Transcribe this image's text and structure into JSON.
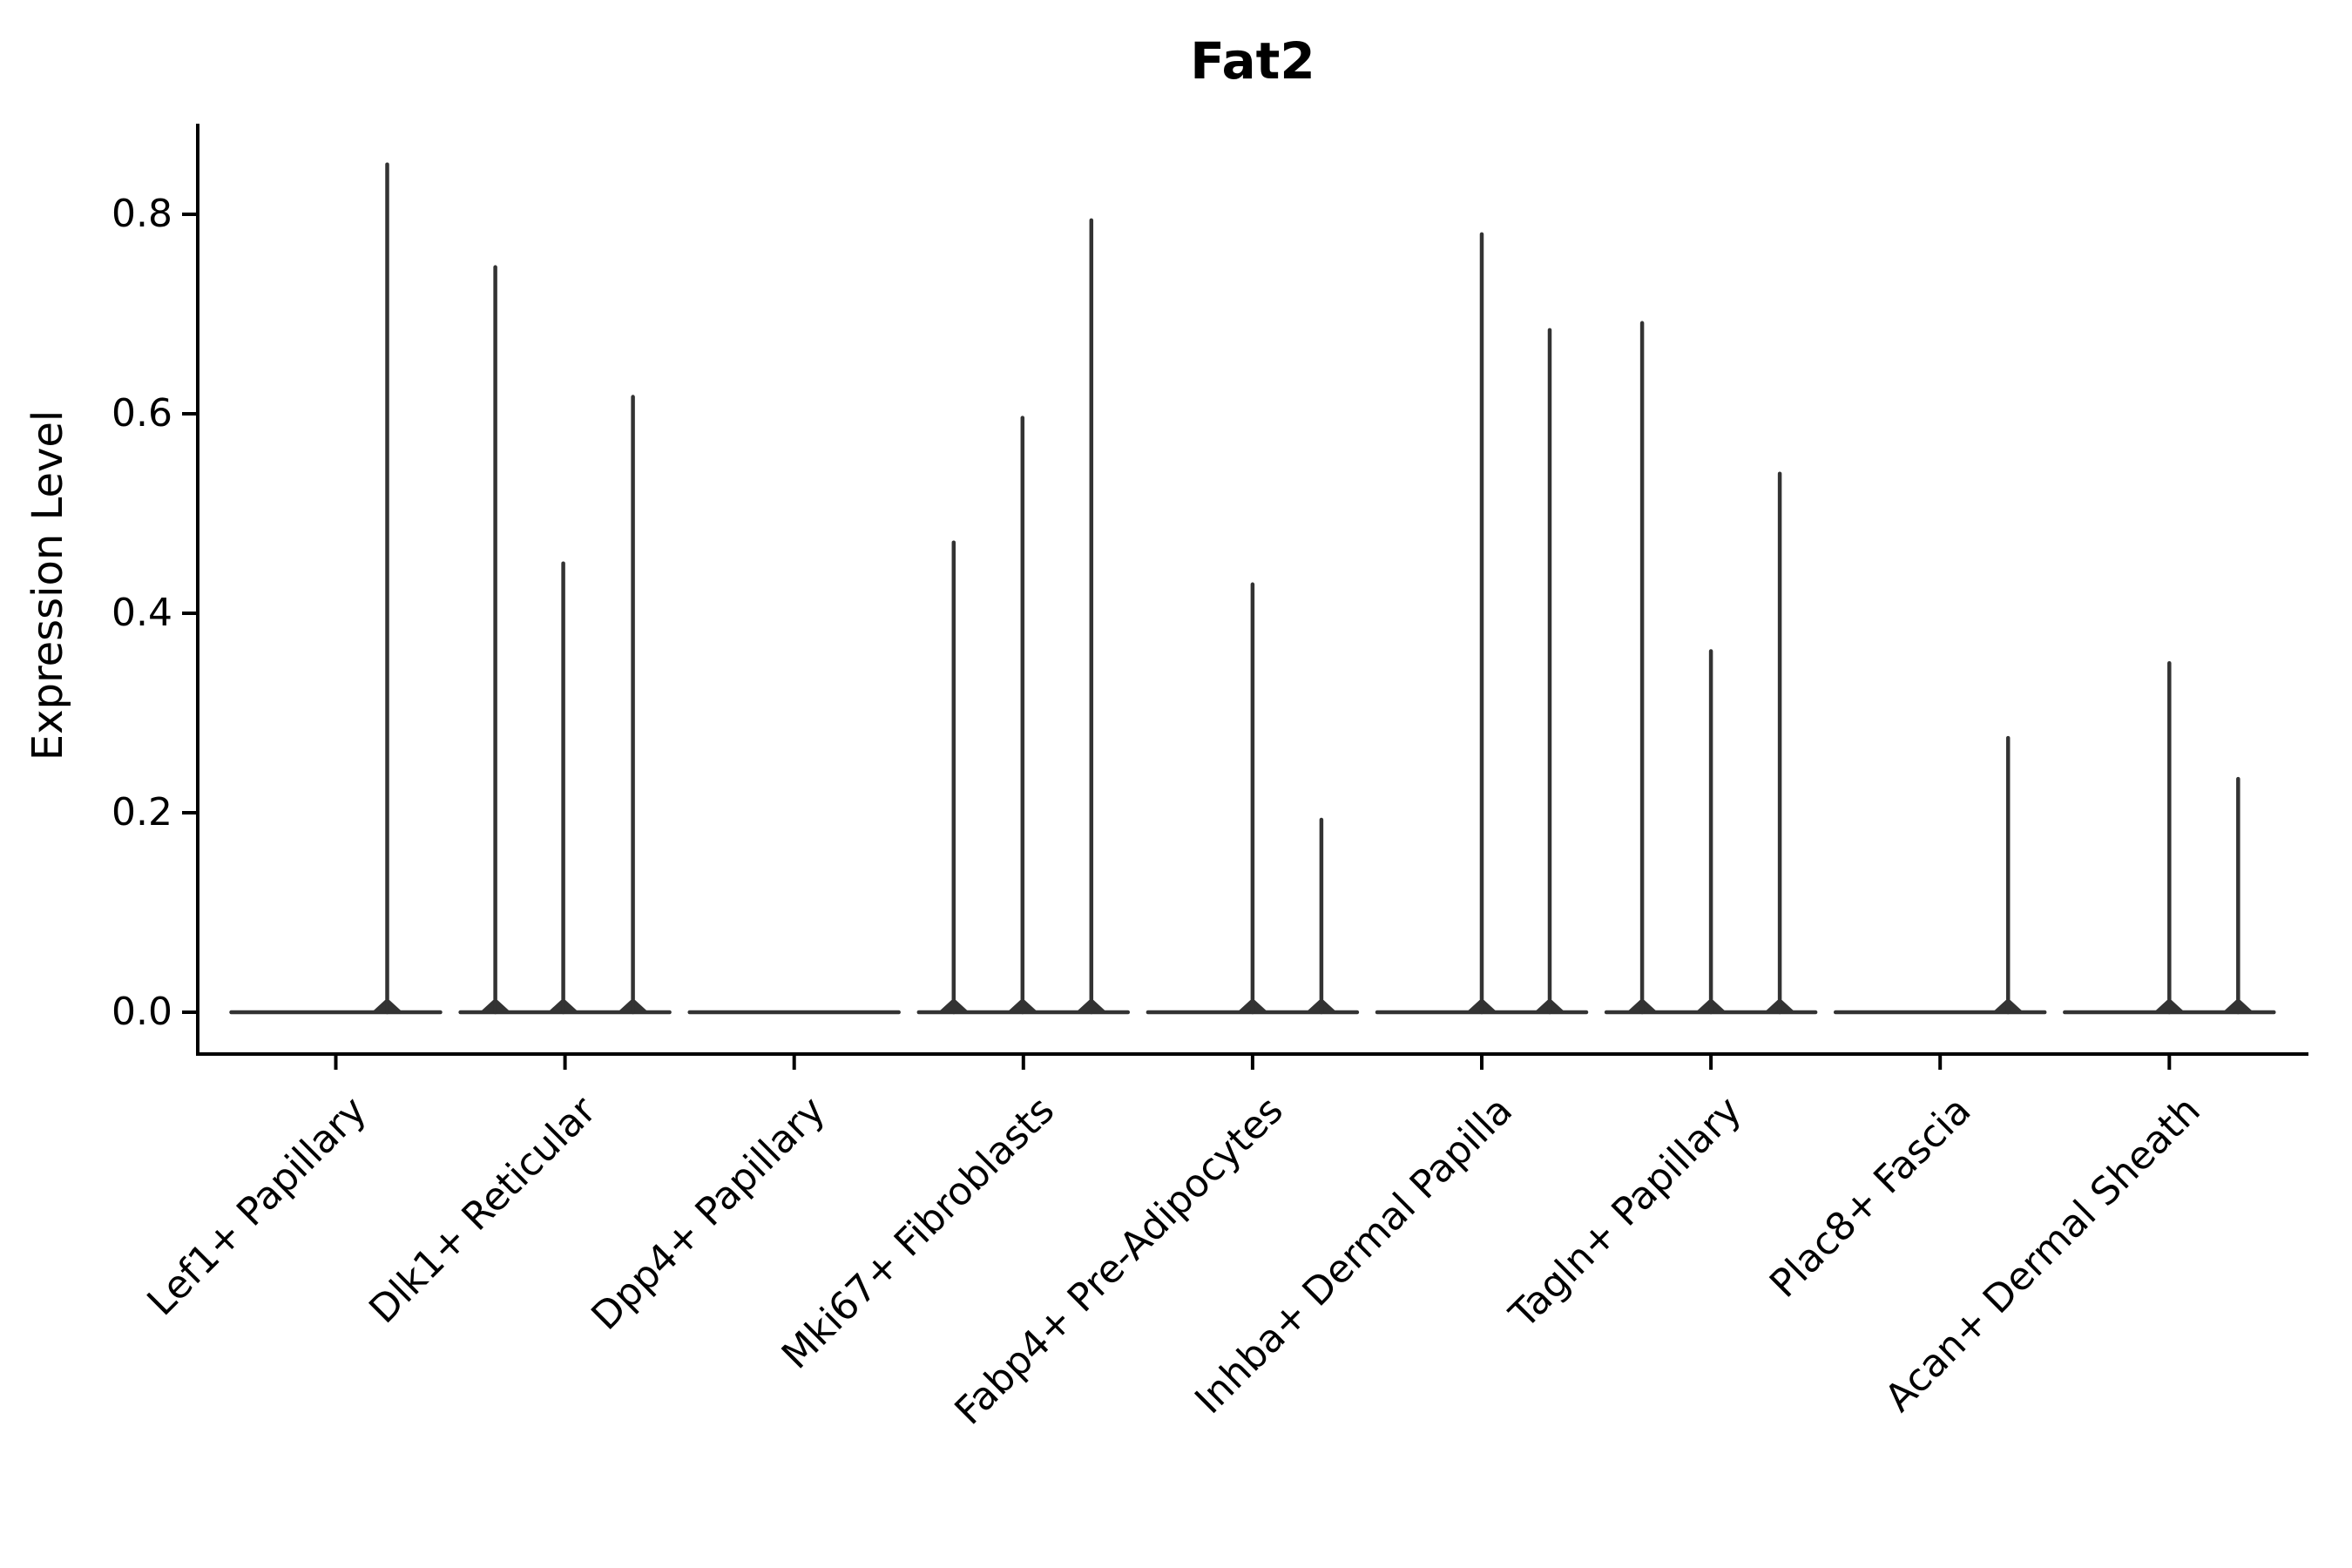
{
  "chart_data": {
    "type": "violin",
    "title": "Fat2",
    "ylabel": "Expression Level",
    "xlabel": "",
    "grid": false,
    "legend": false,
    "violin_color": "#333333",
    "axis_color": "#000000",
    "background_color": "#ffffff",
    "y_ticks": [
      {
        "label": "0.0",
        "value": 0.0
      },
      {
        "label": "0.2",
        "value": 0.2
      },
      {
        "label": "0.4",
        "value": 0.4
      },
      {
        "label": "0.6",
        "value": 0.6
      },
      {
        "label": "0.8",
        "value": 0.8
      }
    ],
    "ylim": [
      0.0,
      0.89
    ],
    "categories": [
      "Lef1+ Papillary",
      "Dlk1+ Reticular",
      "Dpp4+ Papillary",
      "Mki67+ Fibroblasts",
      "Fabp4+ Pre-Adipocytes",
      "Inhba+ Dermal Papilla",
      "Tagln+ Papillary",
      "Plac8+ Fascia",
      "Acan+ Dermal Sheath"
    ],
    "groups": [
      {
        "label": "Lef1+ Papillary",
        "zero_baseline": true,
        "spikes": [
          {
            "dx": 59,
            "value": 0.85
          }
        ]
      },
      {
        "label": "Dlk1+ Reticular",
        "zero_baseline": true,
        "spikes": [
          {
            "dx": -80,
            "value": 0.747
          },
          {
            "dx": -2,
            "value": 0.45
          },
          {
            "dx": 78,
            "value": 0.617
          }
        ]
      },
      {
        "label": "Dpp4+ Papillary",
        "zero_baseline": true,
        "spikes": []
      },
      {
        "label": "Mki67+ Fibroblasts",
        "zero_baseline": true,
        "spikes": [
          {
            "dx": -80,
            "value": 0.471
          },
          {
            "dx": -1,
            "value": 0.596
          },
          {
            "dx": 78,
            "value": 0.794
          }
        ]
      },
      {
        "label": "Fabp4+ Pre-Adipocytes",
        "zero_baseline": true,
        "spikes": [
          {
            "dx": 0,
            "value": 0.429
          },
          {
            "dx": 79,
            "value": 0.193
          }
        ]
      },
      {
        "label": "Inhba+ Dermal Papilla",
        "zero_baseline": true,
        "spikes": [
          {
            "dx": 0,
            "value": 0.78
          },
          {
            "dx": 78,
            "value": 0.684
          }
        ]
      },
      {
        "label": "Tagln+ Papillary",
        "zero_baseline": true,
        "spikes": [
          {
            "dx": -79,
            "value": 0.691
          },
          {
            "dx": 0,
            "value": 0.362
          },
          {
            "dx": 79,
            "value": 0.54
          }
        ]
      },
      {
        "label": "Plac8+ Fascia",
        "zero_baseline": true,
        "spikes": [
          {
            "dx": 78,
            "value": 0.275
          }
        ]
      },
      {
        "label": "Acan+ Dermal Sheath",
        "zero_baseline": true,
        "spikes": [
          {
            "dx": 0,
            "value": 0.35
          },
          {
            "dx": 79,
            "value": 0.234
          }
        ]
      }
    ]
  }
}
